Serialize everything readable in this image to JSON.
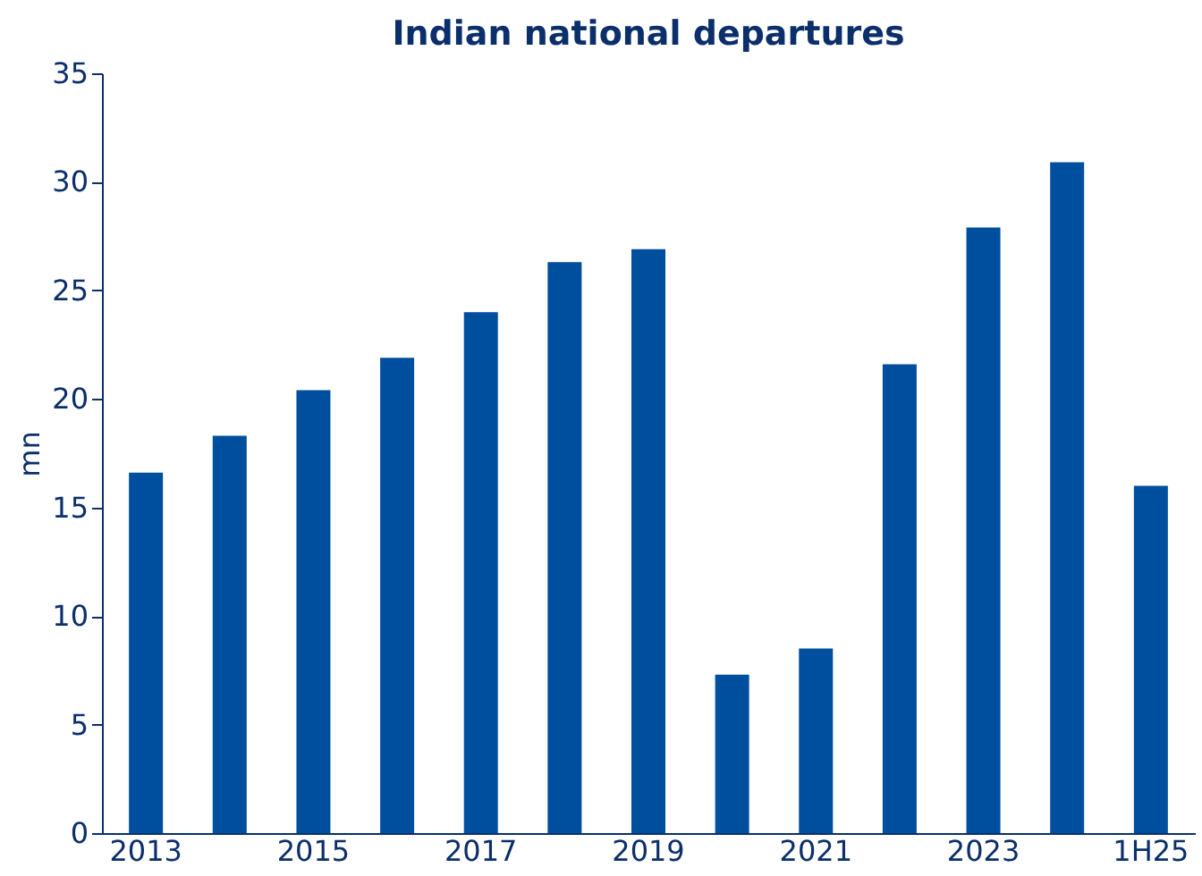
{
  "chart_data": {
    "type": "bar",
    "title": "Indian national departures",
    "ylabel": "mn",
    "categories": [
      "2013",
      null,
      "2015",
      null,
      "2017",
      null,
      "2019",
      null,
      "2021",
      null,
      "2023",
      null,
      "1H25"
    ],
    "values": [
      16.6,
      18.3,
      20.4,
      21.9,
      24.0,
      26.3,
      26.9,
      7.3,
      8.5,
      21.6,
      27.9,
      30.9,
      16.0
    ],
    "color": "#004f9f",
    "ylim": [
      0,
      35
    ],
    "yticks": [
      0,
      5,
      10,
      15,
      20,
      25,
      30,
      35
    ],
    "grid": false
  }
}
